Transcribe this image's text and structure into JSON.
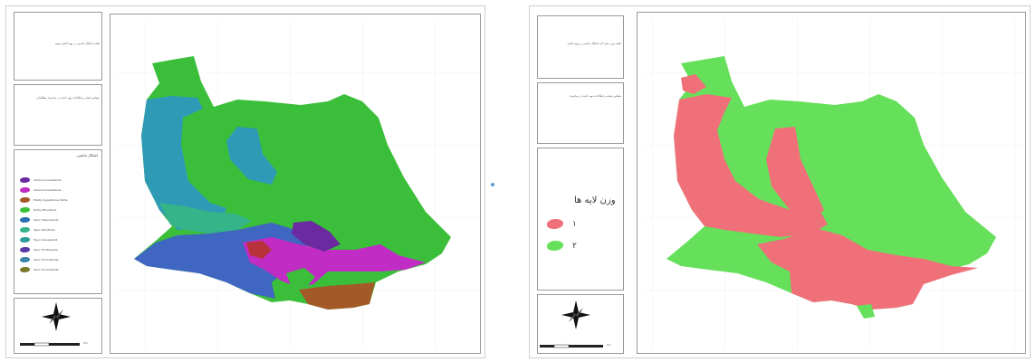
{
  "left_panel": {
    "title_text": "نقشه اشکال تناسبی در پهنه آبخیز نمونه",
    "subtitle_text": "مقیاس نقشه و اطلاعات تهیه کننده در محدوده مطالعاتی",
    "legend_title": "اشکال تناسبی",
    "legend_items": [
      {
        "label": "Calcisol Gravelstone",
        "color": "#6b2aa0"
      },
      {
        "label": "Calcisol Gravelstone",
        "color": "#c02cc4"
      },
      {
        "label": "Mostly Gypsiferous fields",
        "color": "#a45a28"
      },
      {
        "label": "Rocky Mountains",
        "color": "#3bbf3b"
      },
      {
        "label": "Typic Haplocalcids",
        "color": "#2a6fb5"
      },
      {
        "label": "Typic Salorthids",
        "color": "#35b48a"
      },
      {
        "label": "Typic Gravelsandi",
        "color": "#2f9a9a"
      },
      {
        "label": "Typic Torrifluvents",
        "color": "#5a3aa8"
      },
      {
        "label": "Typic Torriorthents",
        "color": "#3a86a8"
      },
      {
        "label": "Xeric Torriorthents",
        "color": "#7a7a2a"
      }
    ],
    "compass_letters": [
      "N",
      "E",
      "S",
      "W"
    ],
    "scale_unit": "Km"
  },
  "right_panel": {
    "title_text": "نقشه وزن دهی لایه اشکال تناسبی در پهنه آبخیز",
    "subtitle_text": "مقیاس نقشه و اطلاعات تهیه کننده در محدوده",
    "legend_title": "وزن لایه ها",
    "legend_items": [
      {
        "label": "۱",
        "color": "#f0707a"
      },
      {
        "label": "۲",
        "color": "#66e05a"
      }
    ],
    "compass_letters": [
      "N",
      "E",
      "S",
      "W"
    ],
    "scale_unit": "Km"
  },
  "colors": {
    "purple": "#6b2aa0",
    "magenta": "#c02cc4",
    "brown": "#a45a28",
    "green": "#3bbf3b",
    "blue": "#3f66c0",
    "teal": "#2a9cb0",
    "sea": "#35b48a",
    "pink": "#f0707a",
    "lightgreen": "#66e05a"
  }
}
